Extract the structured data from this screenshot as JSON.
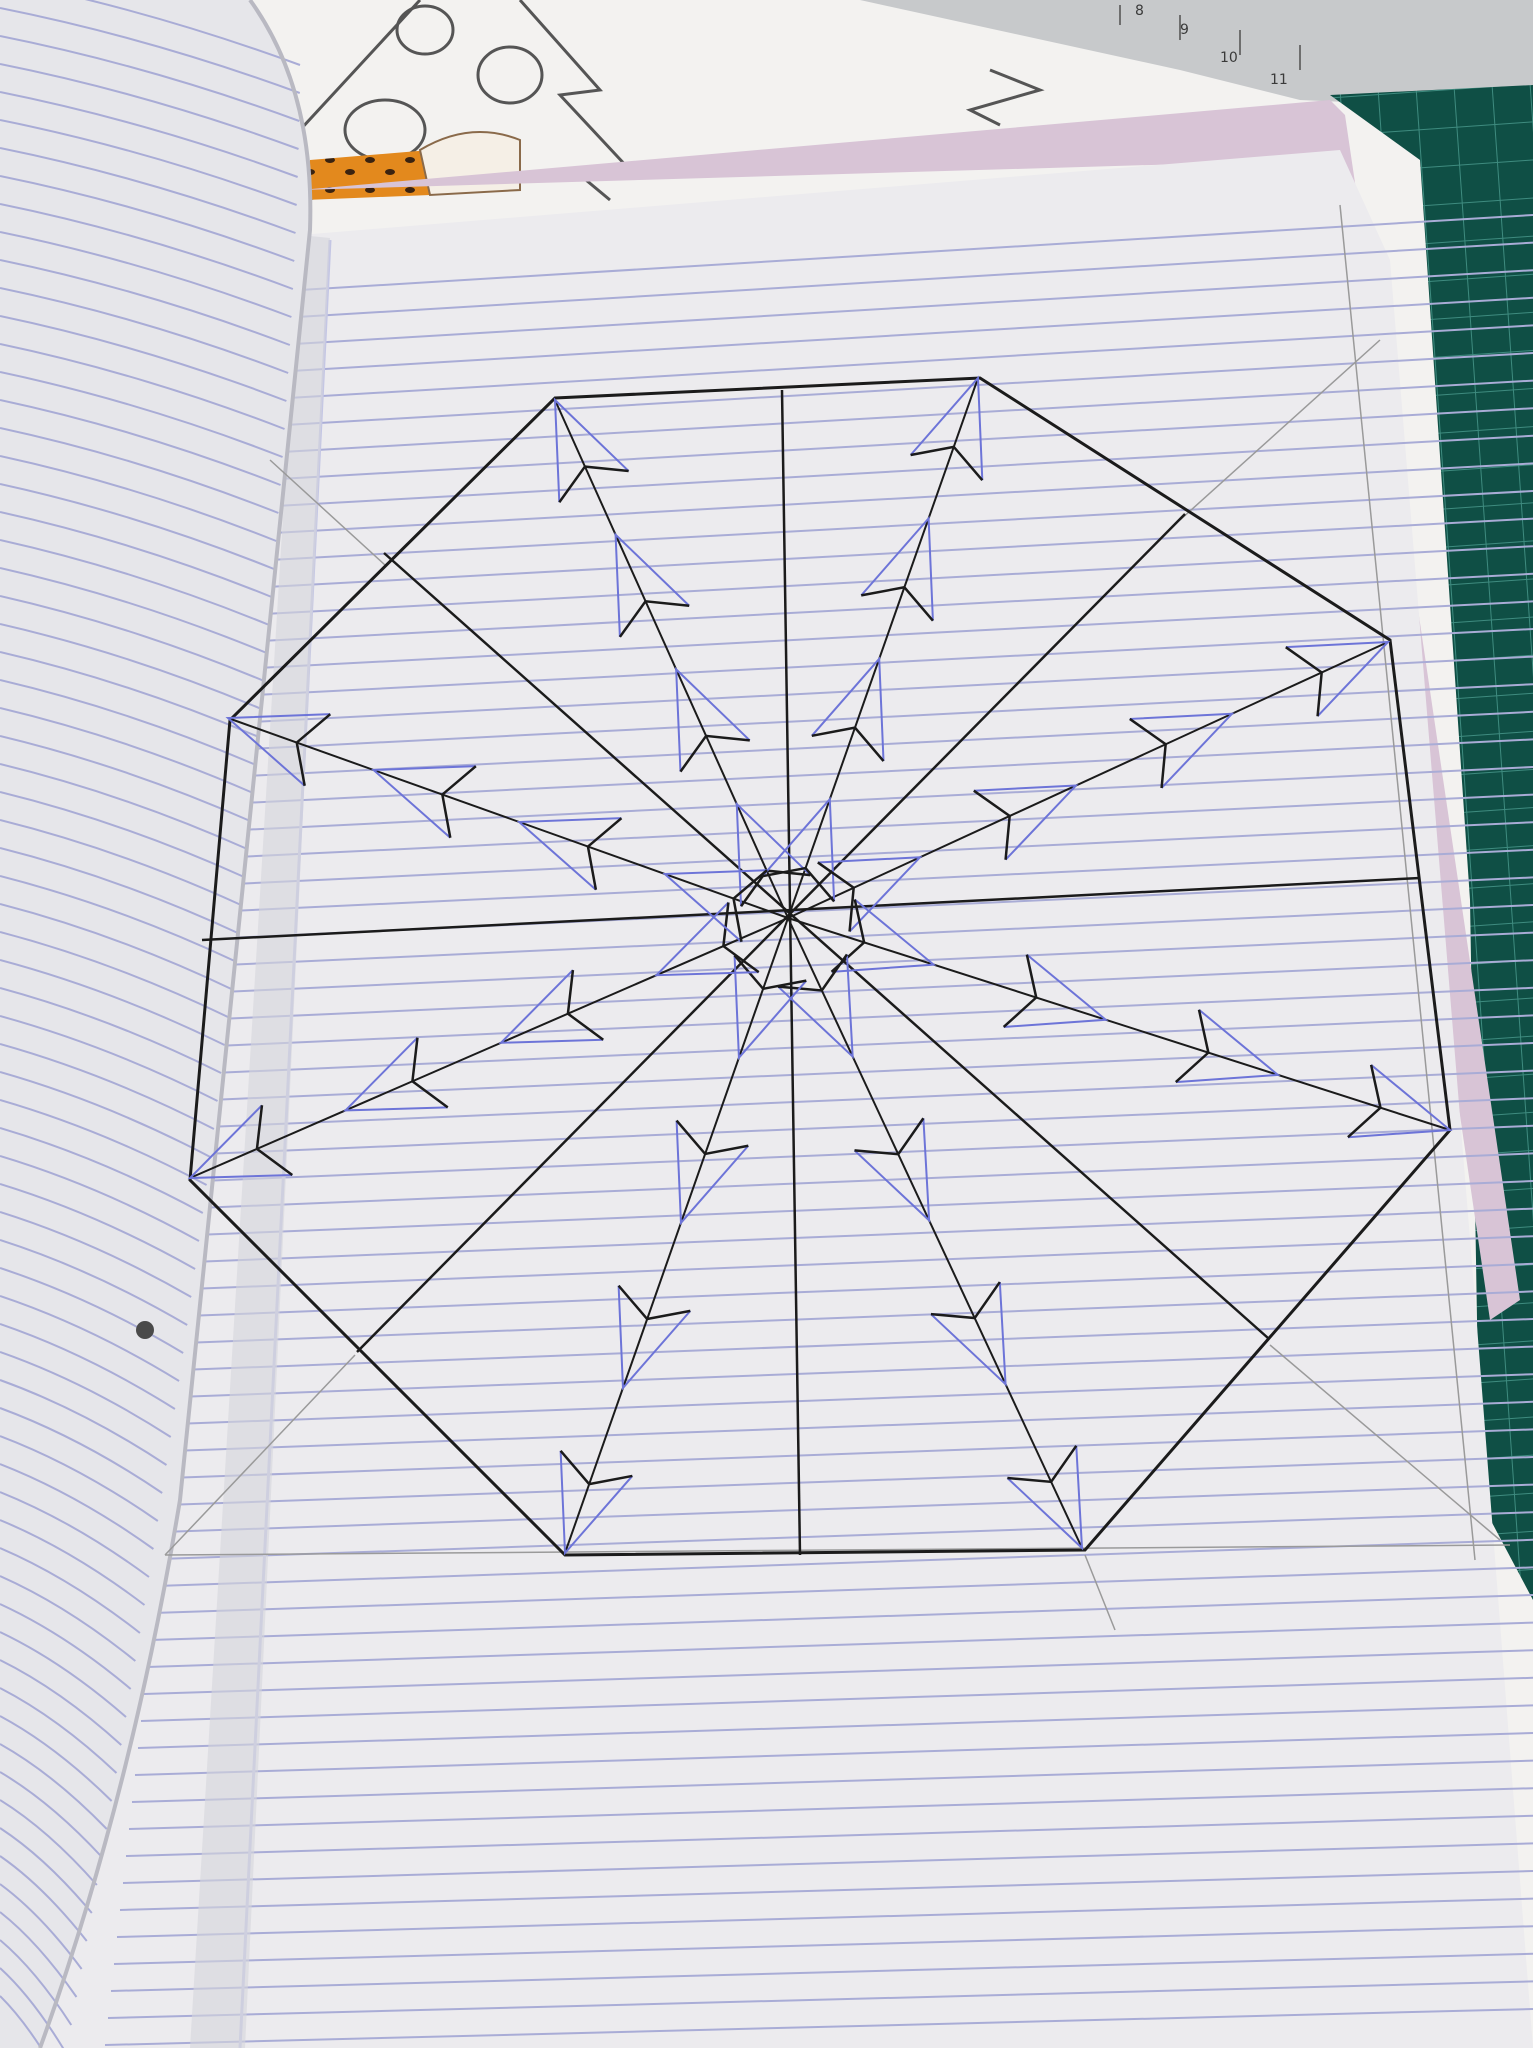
{
  "scene": {
    "description_free": true,
    "colors": {
      "background_paper": "#f3f2f0",
      "notebook_page": "#ecebee",
      "left_page": "#e6e6ea",
      "ruled_line": "#a9acd6",
      "margin_line": "#c4c6e4",
      "pencil_black": "#1b1b1b",
      "pen_blue": "#6d74d8",
      "guide_gray": "#9a9a9a",
      "lilac_cover": "#d8c4d6",
      "cutting_mat": "#0f4f45",
      "mat_grid": "#3e8b7f",
      "ruler": "#c7c9cb",
      "leopard_orange": "#e3891d"
    }
  },
  "ruler": {
    "digits": [
      "8",
      "9",
      "10",
      "11"
    ]
  },
  "drawing": {
    "icon_name": "octagon-arrow-star-drawing",
    "arrow_count": 8
  }
}
